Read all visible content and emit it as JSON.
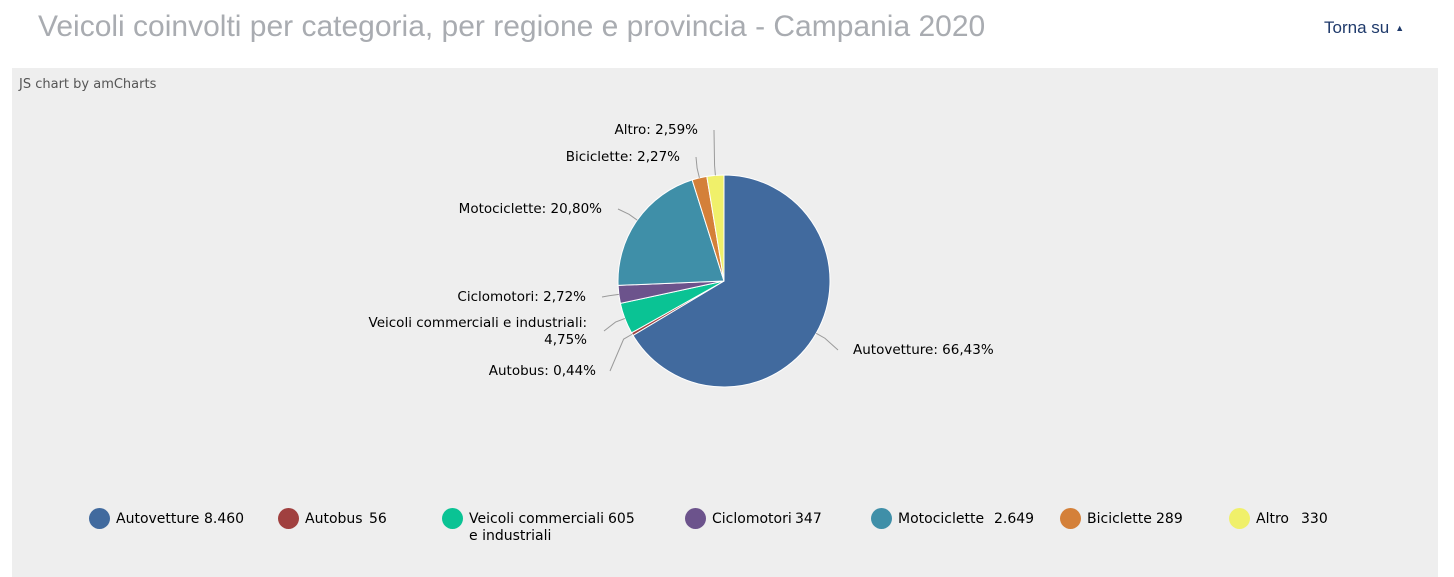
{
  "header": {
    "title": "Veicoli coinvolti per categoria, per regione e provincia - Campania 2020",
    "back_to_top": "Torna su",
    "back_to_top_arrow": "▲"
  },
  "chart_credit": "JS chart by amCharts",
  "chart_data": {
    "type": "pie",
    "title": "",
    "legend_position": "bottom",
    "slices": [
      {
        "name": "Autovetture",
        "value": 8460,
        "value_label": "8.460",
        "percent_label": "66,43%",
        "color": "#416a9e"
      },
      {
        "name": "Autobus",
        "value": 56,
        "value_label": "56",
        "percent_label": "0,44%",
        "color": "#a0403f"
      },
      {
        "name": "Veicoli commerciali e industriali",
        "value": 605,
        "value_label": "605",
        "percent_label": "4,75%",
        "color": "#0ac394"
      },
      {
        "name": "Ciclomotori",
        "value": 347,
        "value_label": "347",
        "percent_label": "2,72%",
        "color": "#6c538c"
      },
      {
        "name": "Motociclette",
        "value": 2649,
        "value_label": "2.649",
        "percent_label": "20,80%",
        "color": "#3f8fa8"
      },
      {
        "name": "Biciclette",
        "value": 289,
        "value_label": "289",
        "percent_label": "2,27%",
        "color": "#d48039"
      },
      {
        "name": "Altro",
        "value": 330,
        "value_label": "330",
        "percent_label": "2,59%",
        "color": "#f0f06a"
      }
    ]
  }
}
